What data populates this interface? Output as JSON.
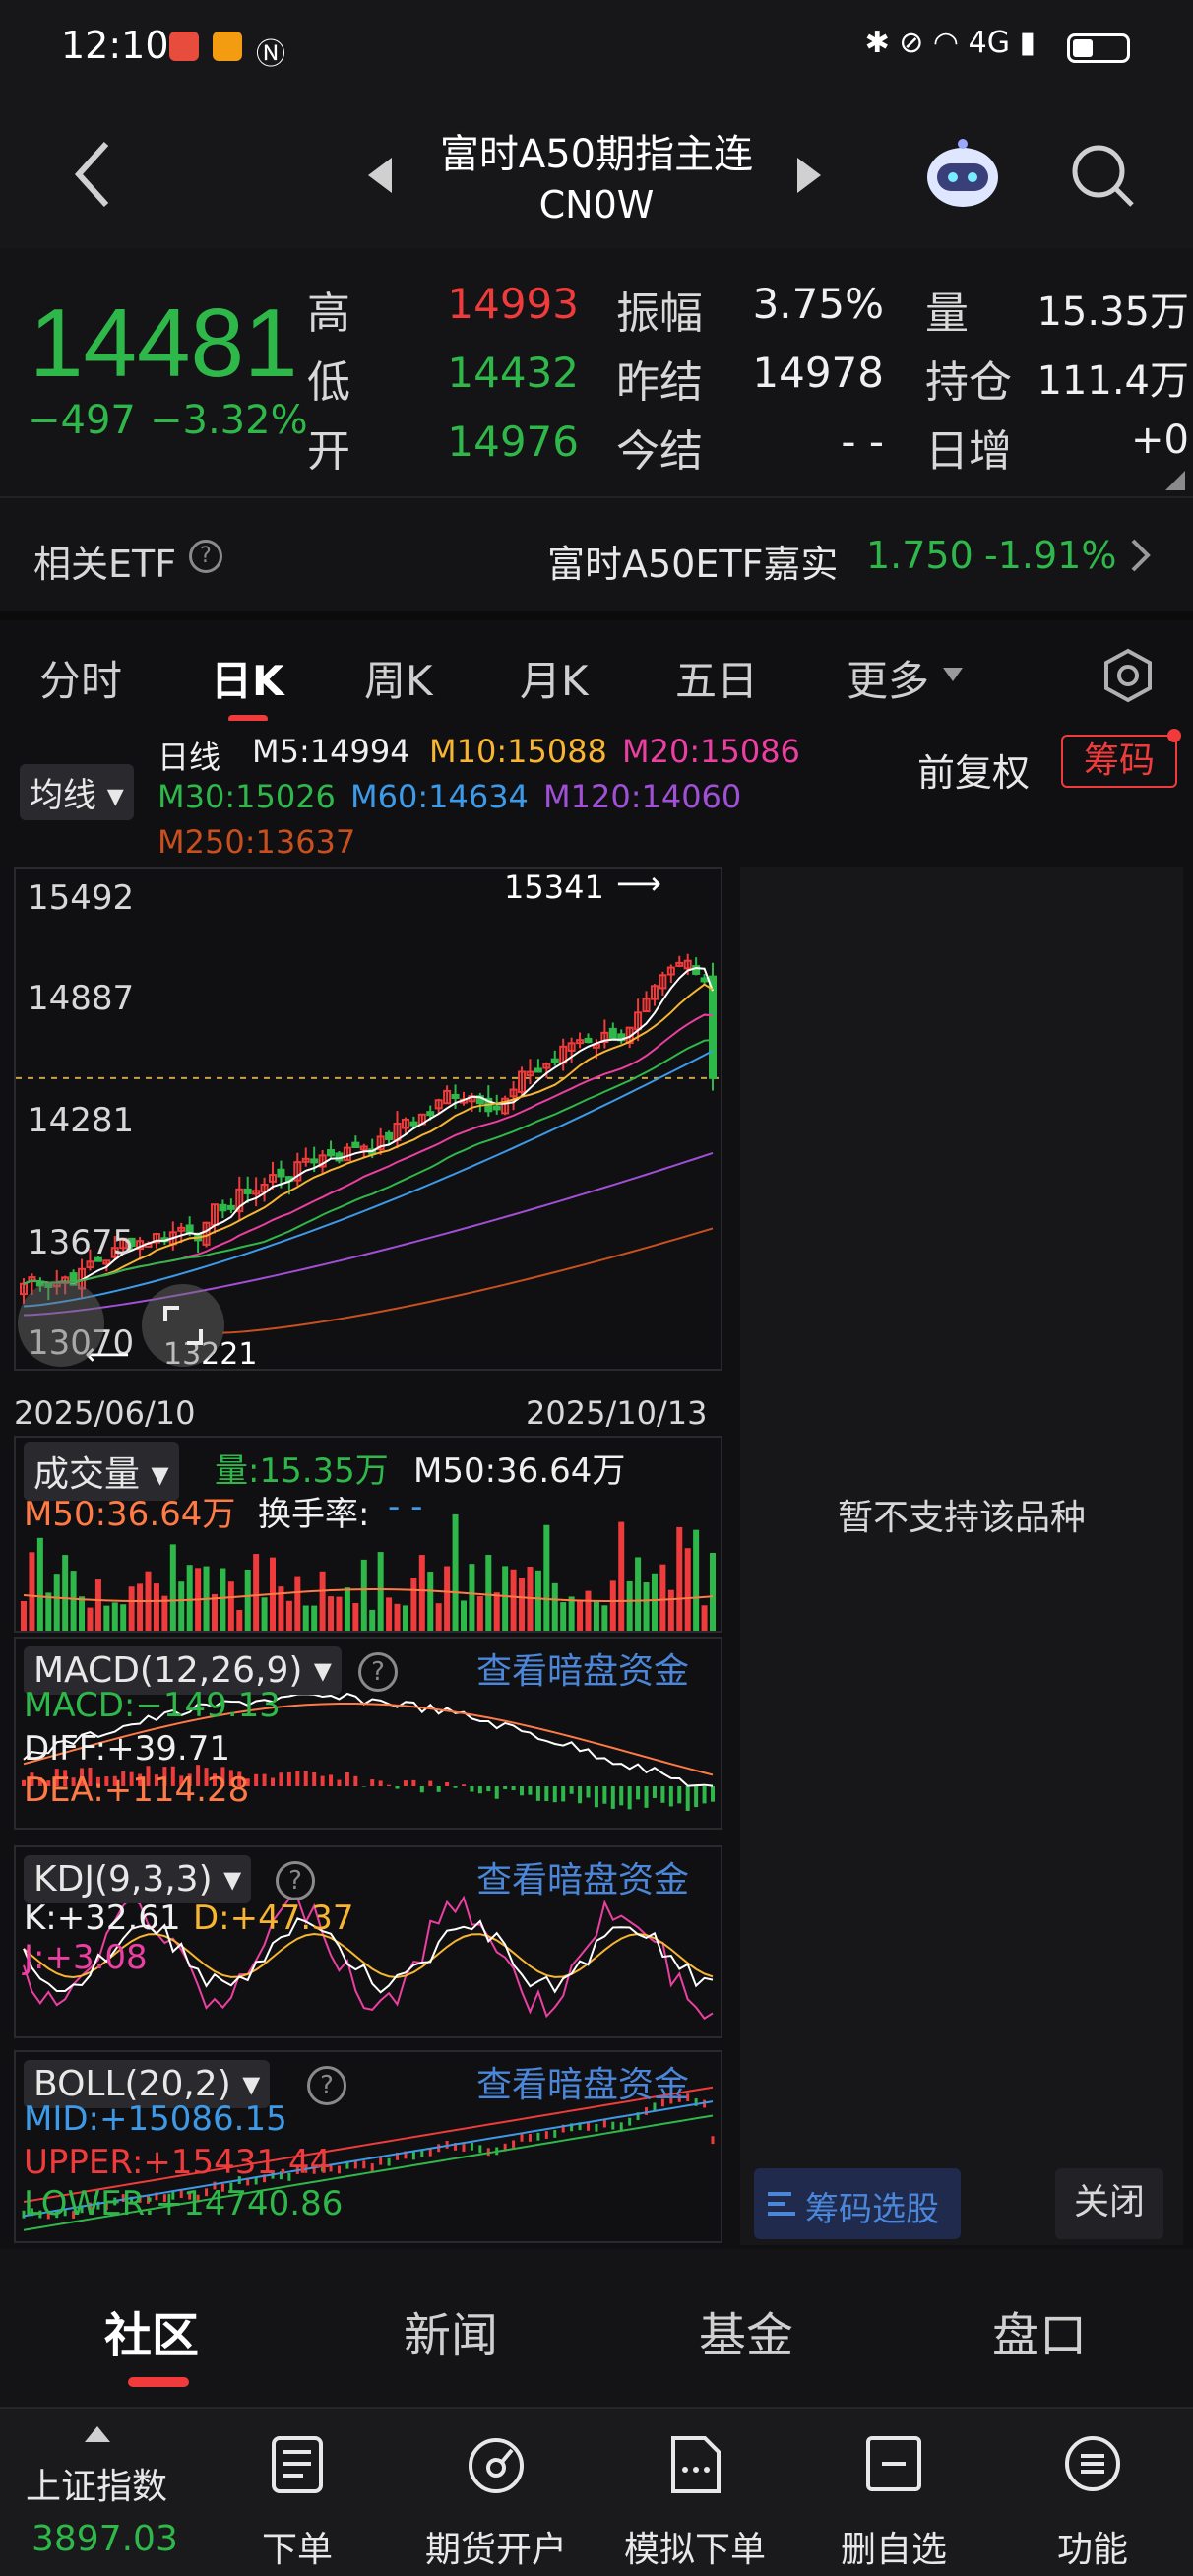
{
  "status_bar": {
    "time": "12:10",
    "right_glyphs": "✱ ⊘ ◠ 4G ▮"
  },
  "header": {
    "title": "富时A50期指主连",
    "subtitle": "CN0W",
    "back_icon": "chevron-left-icon",
    "prev_icon": "triangle-left-icon",
    "next_icon": "triangle-right-icon",
    "robot_icon": "robot-icon",
    "search_icon": "search-icon"
  },
  "quote": {
    "price": "14481",
    "change": "−497",
    "change_pct": "−3.32%",
    "labels": {
      "high": "高",
      "low": "低",
      "open": "开",
      "amplitude": "振幅",
      "prev_settle": "昨结",
      "today_settle": "今结",
      "volume": "量",
      "open_interest": "持仓",
      "daily_increase": "日增"
    },
    "high": "14993",
    "low": "14432",
    "open": "14976",
    "amplitude": "3.75%",
    "prev_settle": "14978",
    "today_settle": "- -",
    "volume": "15.35万",
    "open_interest": "111.4万",
    "daily_increase": "+0"
  },
  "etf": {
    "label": "相关ETF",
    "name": "富时A50ETF嘉实",
    "price": "1.750",
    "pct": "-1.91%"
  },
  "tabs": [
    {
      "label": "分时"
    },
    {
      "label": "日K"
    },
    {
      "label": "周K"
    },
    {
      "label": "月K"
    },
    {
      "label": "五日"
    },
    {
      "label": "更多"
    }
  ],
  "chart_controls": {
    "ma_selector": "均线",
    "daily_label": "日线",
    "adjust": "前复权",
    "chips_button": "筹码"
  },
  "ma_values": {
    "m5": "M5:14994",
    "m10": "M10:15088",
    "m20": "M20:15086",
    "m30": "M30:15026",
    "m60": "M60:14634",
    "m120": "M120:14060",
    "m250": "M250:13637"
  },
  "colors": {
    "up": "#ef3b3b",
    "down": "#2fb84a",
    "m5": "#ffffff",
    "m10": "#f7b531",
    "m20": "#ec3fa2",
    "m30": "#2fb84a",
    "m60": "#3d9ae8",
    "m120": "#a14fd6",
    "m250": "#c9501e"
  },
  "chart_data": {
    "type": "candlestick",
    "y_axis_ticks": [
      "15492",
      "14887",
      "14281",
      "13675",
      "13070"
    ],
    "ylim": [
      13070,
      15492
    ],
    "x_start_label": "2025/06/10",
    "x_end_label": "2025/10/13",
    "max_marker": "15341",
    "min_marker": "13221"
  },
  "volume_panel": {
    "selector": "成交量",
    "volume": "量:15.35万",
    "m50_white": "M50:36.64万",
    "m50": "M50:36.64万",
    "turnover": "换手率:",
    "turnover_value": "- -"
  },
  "macd_panel": {
    "selector": "MACD(12,26,9)",
    "link": "查看暗盘资金",
    "macd": "MACD:−149.13",
    "diff": "DIFF:+39.71",
    "dea": "DEA:+114.28"
  },
  "kdj_panel": {
    "selector": "KDJ(9,3,3)",
    "link": "查看暗盘资金",
    "k": "K:+32.61",
    "d": "D:+47.37",
    "j": "J:+3.08"
  },
  "boll_panel": {
    "selector": "BOLL(20,2)",
    "link": "查看暗盘资金",
    "mid": "MID:+15086.15",
    "upper": "UPPER:+15431.44",
    "lower": "LOWER:+14740.86"
  },
  "side_panel": {
    "unsupported": "暂不支持该品种",
    "chip_select": "筹码选股",
    "close": "关闭"
  },
  "bottom_tabs": [
    {
      "label": "社区"
    },
    {
      "label": "新闻"
    },
    {
      "label": "基金"
    },
    {
      "label": "盘口"
    }
  ],
  "toolbar": {
    "index_name": "上证指数",
    "index_value": "3897.03",
    "items": [
      {
        "label": "下单",
        "icon": "order-icon"
      },
      {
        "label": "期货开户",
        "icon": "account-icon"
      },
      {
        "label": "模拟下单",
        "icon": "simulate-icon"
      },
      {
        "label": "删自选",
        "icon": "remove-watch-icon"
      },
      {
        "label": "功能",
        "icon": "menu-icon"
      }
    ]
  }
}
